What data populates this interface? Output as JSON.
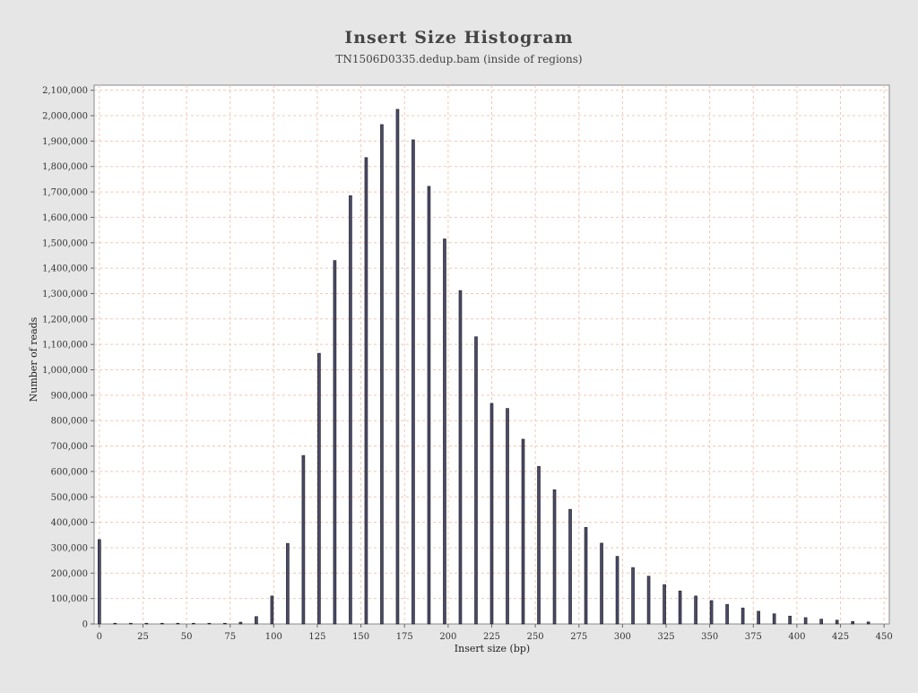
{
  "chart_data": {
    "type": "bar",
    "title": "Insert Size Histogram",
    "subtitle": "TN1506D0335.dedup.bam (inside of regions)",
    "xlabel": "Insert size (bp)",
    "ylabel": "Number of reads",
    "xlim": [
      -3,
      453
    ],
    "ylim": [
      0,
      2120000
    ],
    "x_ticks": [
      0,
      25,
      50,
      75,
      100,
      125,
      150,
      175,
      200,
      225,
      250,
      275,
      300,
      325,
      350,
      375,
      400,
      425,
      450
    ],
    "x_tick_labels": [
      "0",
      "25",
      "50",
      "75",
      "100",
      "125",
      "150",
      "175",
      "200",
      "225",
      "250",
      "275",
      "300",
      "325",
      "350",
      "375",
      "400",
      "425",
      "450"
    ],
    "y_ticks": [
      0,
      100000,
      200000,
      300000,
      400000,
      500000,
      600000,
      700000,
      800000,
      900000,
      1000000,
      1100000,
      1200000,
      1300000,
      1400000,
      1500000,
      1600000,
      1700000,
      1800000,
      1900000,
      2000000,
      2100000
    ],
    "y_tick_labels": [
      "0",
      "100,000",
      "200,000",
      "300,000",
      "400,000",
      "500,000",
      "600,000",
      "700,000",
      "800,000",
      "900,000",
      "1,000,000",
      "1,100,000",
      "1,200,000",
      "1,300,000",
      "1,400,000",
      "1,500,000",
      "1,600,000",
      "1,700,000",
      "1,800,000",
      "1,900,000",
      "2,000,000",
      "2,100,000"
    ],
    "grid": true,
    "legend": "none",
    "bar_color": "#4a4a6a",
    "grid_color": "#f0c8b4",
    "x": [
      0,
      9,
      18,
      27,
      36,
      45,
      54,
      63,
      72,
      81,
      90,
      99,
      108,
      117,
      126,
      135,
      144,
      153,
      162,
      171,
      180,
      189,
      198,
      207,
      216,
      225,
      234,
      243,
      252,
      261,
      270,
      279,
      288,
      297,
      306,
      315,
      324,
      333,
      342,
      351,
      360,
      369,
      378,
      387,
      396,
      405,
      414,
      423,
      432,
      441
    ],
    "values": [
      332000,
      800,
      900,
      700,
      600,
      700,
      800,
      700,
      1200,
      7000,
      29000,
      110000,
      317000,
      663000,
      1065000,
      1430000,
      1685000,
      1835000,
      1965000,
      2025000,
      1905000,
      1722000,
      1515000,
      1312000,
      1130000,
      868000,
      848000,
      727000,
      620000,
      528000,
      451000,
      380000,
      318000,
      266000,
      222000,
      188000,
      155000,
      130000,
      110000,
      92000,
      77000,
      63000,
      50000,
      40000,
      31000,
      25000,
      19000,
      15000,
      10000,
      8000
    ]
  }
}
